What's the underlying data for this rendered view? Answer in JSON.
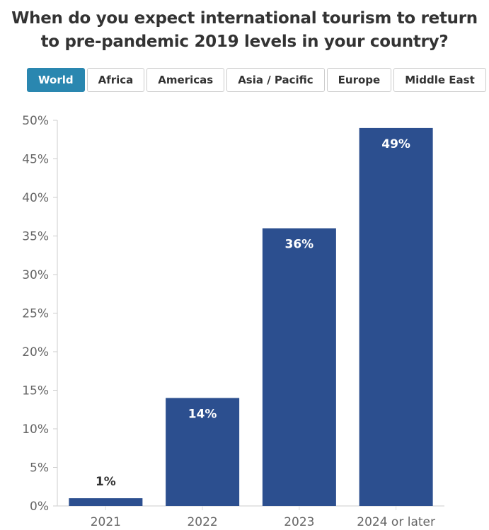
{
  "title_lines": [
    "When do you expect international tourism to return",
    "to pre-pandemic 2019 levels in your country?"
  ],
  "tabs": [
    {
      "label": "World",
      "active": true
    },
    {
      "label": "Africa"
    },
    {
      "label": "Americas"
    },
    {
      "label": "Asia / Pacific"
    },
    {
      "label": "Europe"
    },
    {
      "label": "Middle East"
    }
  ],
  "colors": {
    "bar": "#2c4f8f",
    "active_tab": "#2a87b0"
  },
  "chart_data": {
    "type": "bar",
    "title": "When do you expect international tourism to return to pre-pandemic 2019 levels in your country?",
    "categories": [
      "2021",
      "2022",
      "2023",
      "2024 or later"
    ],
    "values": [
      1,
      14,
      36,
      49
    ],
    "data_labels": [
      "1%",
      "14%",
      "36%",
      "49%"
    ],
    "ylim": [
      0,
      50
    ],
    "yticks": [
      0,
      5,
      10,
      15,
      20,
      25,
      30,
      35,
      40,
      45,
      50
    ],
    "ytick_labels": [
      "0%",
      "5%",
      "10%",
      "15%",
      "20%",
      "25%",
      "30%",
      "35%",
      "40%",
      "45%",
      "50%"
    ],
    "grid": false,
    "xlabel": "",
    "ylabel": ""
  }
}
